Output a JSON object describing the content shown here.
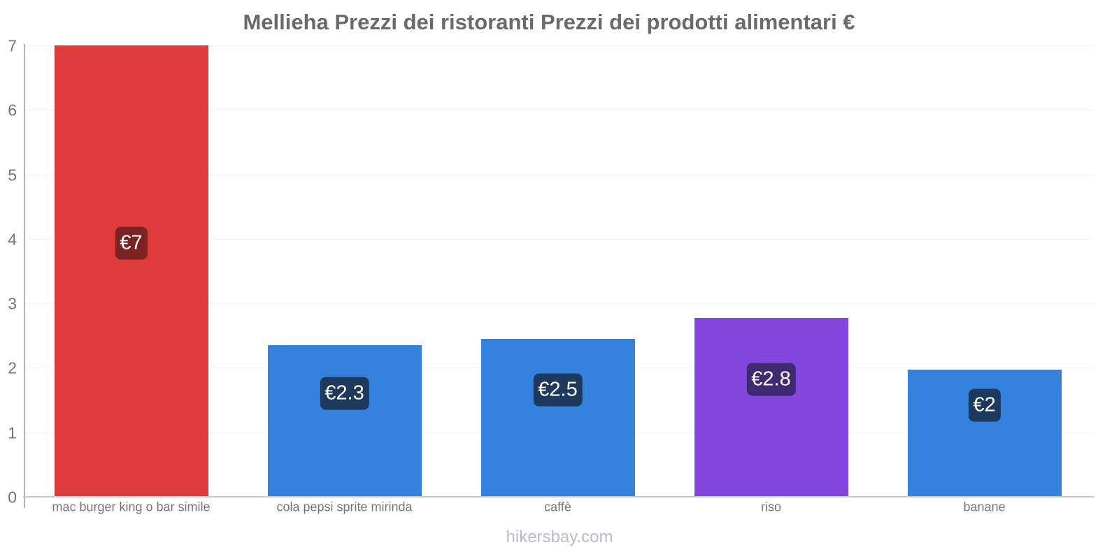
{
  "page": {
    "title": "Mellieha Prezzi dei ristoranti Prezzi dei prodotti alimentari €",
    "footer": "hikersbay.com"
  },
  "chart_data": {
    "type": "bar",
    "title": "Mellieha Prezzi dei ristoranti Prezzi dei prodotti alimentari €",
    "currency": "EUR",
    "categories": [
      "mac burger king o bar simile",
      "cola pepsi sprite mirinda",
      "caffè",
      "riso",
      "banane"
    ],
    "values": [
      7,
      2.3,
      2.5,
      2.8,
      2
    ],
    "value_labels": [
      "€7",
      "€2.3",
      "€2.5",
      "€2.8",
      "€2"
    ],
    "bar_render_values": [
      7,
      2.35,
      2.45,
      2.77,
      1.97
    ],
    "bar_colors": [
      "#e03b3b",
      "#3581de",
      "#3581de",
      "#8347dd",
      "#3581de"
    ],
    "value_label_bg": [
      "#7a2121",
      "#1d3a5e",
      "#1d3a5e",
      "#3e2a70",
      "#1d3a5e"
    ],
    "value_label_text_color": "#ffffff",
    "xlabel": "",
    "ylabel": "",
    "ylim": [
      0,
      7
    ],
    "yticks": [
      0,
      1,
      2,
      3,
      4,
      5,
      6,
      7
    ],
    "grid": "horizontal-light",
    "legend": "none",
    "axis_color": "#b3b3b3",
    "tick_label_color": "#757575",
    "title_color": "#6a6a6a",
    "footer": "hikersbay.com"
  }
}
